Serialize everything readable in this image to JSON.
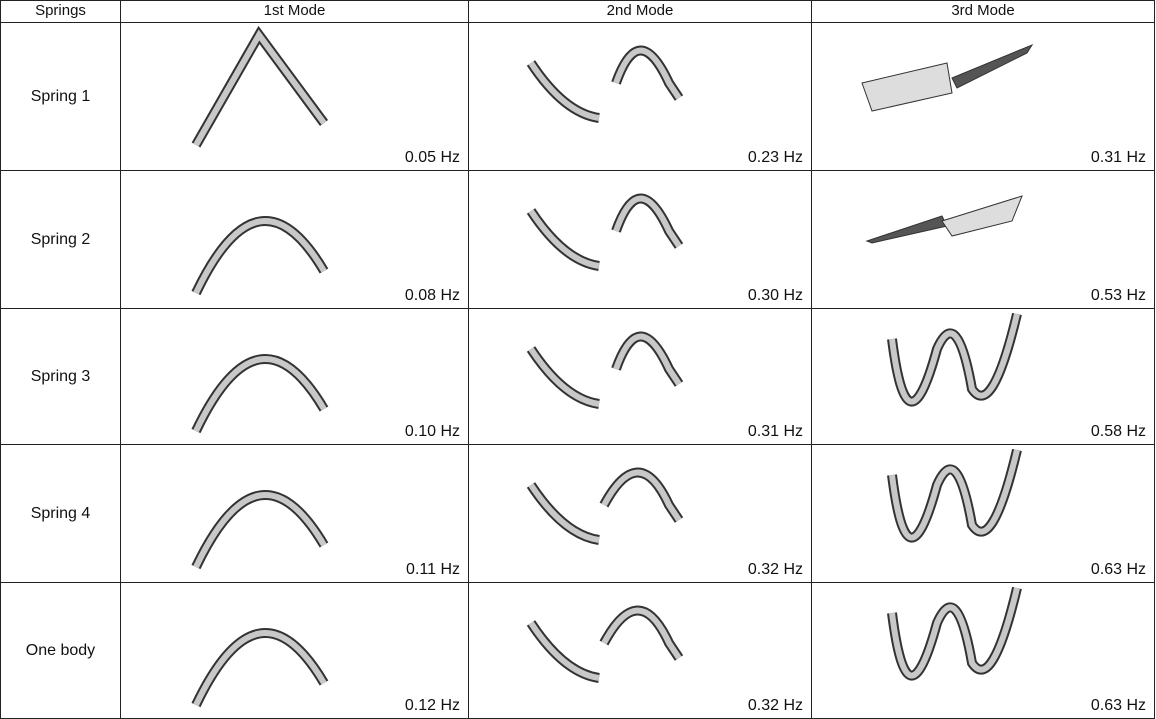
{
  "table": {
    "header": [
      "Springs",
      "1st Mode",
      "2nd Mode",
      "3rd Mode"
    ],
    "rows": [
      [
        "Spring 1",
        "0.05 Hz",
        "0.23 Hz",
        "0.31 Hz"
      ],
      [
        "Spring 2",
        "0.08 Hz",
        "0.30 Hz",
        "0.53 Hz"
      ],
      [
        "Spring 3",
        "0.10 Hz",
        "0.31 Hz",
        "0.58 Hz"
      ],
      [
        "Spring 4",
        "0.11 Hz",
        "0.32 Hz",
        "0.63 Hz"
      ],
      [
        "One body",
        "0.12 Hz",
        "0.32 Hz",
        "0.63 Hz"
      ]
    ]
  }
}
